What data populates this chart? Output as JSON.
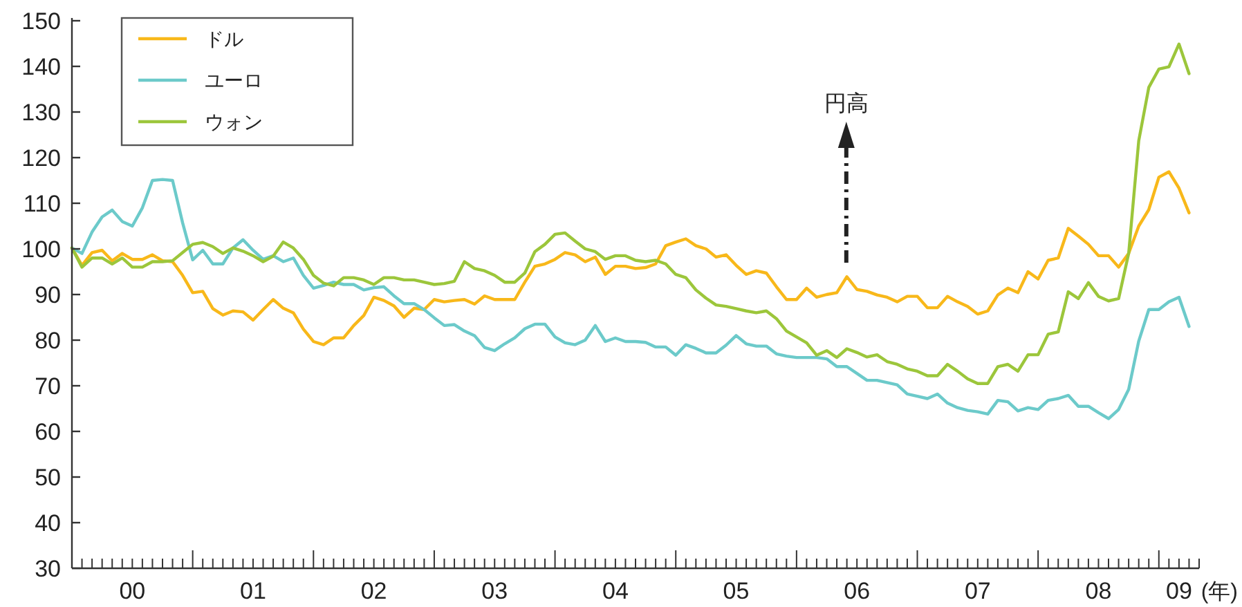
{
  "chart_data": {
    "type": "line",
    "x": [
      "2000-01",
      "2000-02",
      "2000-03",
      "2000-04",
      "2000-05",
      "2000-06",
      "2000-07",
      "2000-08",
      "2000-09",
      "2000-10",
      "2000-11",
      "2000-12",
      "2001-01",
      "2001-02",
      "2001-03",
      "2001-04",
      "2001-05",
      "2001-06",
      "2001-07",
      "2001-08",
      "2001-09",
      "2001-10",
      "2001-11",
      "2001-12",
      "2002-01",
      "2002-02",
      "2002-03",
      "2002-04",
      "2002-05",
      "2002-06",
      "2002-07",
      "2002-08",
      "2002-09",
      "2002-10",
      "2002-11",
      "2002-12",
      "2003-01",
      "2003-02",
      "2003-03",
      "2003-04",
      "2003-05",
      "2003-06",
      "2003-07",
      "2003-08",
      "2003-09",
      "2003-10",
      "2003-11",
      "2003-12",
      "2004-01",
      "2004-02",
      "2004-03",
      "2004-04",
      "2004-05",
      "2004-06",
      "2004-07",
      "2004-08",
      "2004-09",
      "2004-10",
      "2004-11",
      "2004-12",
      "2005-01",
      "2005-02",
      "2005-03",
      "2005-04",
      "2005-05",
      "2005-06",
      "2005-07",
      "2005-08",
      "2005-09",
      "2005-10",
      "2005-11",
      "2005-12",
      "2006-01",
      "2006-02",
      "2006-03",
      "2006-04",
      "2006-05",
      "2006-06",
      "2006-07",
      "2006-08",
      "2006-09",
      "2006-10",
      "2006-11",
      "2006-12",
      "2007-01",
      "2007-02",
      "2007-03",
      "2007-04",
      "2007-05",
      "2007-06",
      "2007-07",
      "2007-08",
      "2007-09",
      "2007-10",
      "2007-11",
      "2007-12",
      "2008-01",
      "2008-02",
      "2008-03",
      "2008-04",
      "2008-05",
      "2008-06",
      "2008-07",
      "2008-08",
      "2008-09",
      "2008-10",
      "2008-11",
      "2008-12",
      "2009-01",
      "2009-02",
      "2009-03",
      "2009-04"
    ],
    "series": [
      {
        "name": "ドル",
        "color": "#f8b81a",
        "values": [
          100.2,
          96.4,
          99.2,
          99.7,
          97.4,
          99,
          97.7,
          97.7,
          98.7,
          97.4,
          97.2,
          94.2,
          90.4,
          90.7,
          86.9,
          85.5,
          86.4,
          86.2,
          84.4,
          86.7,
          88.9,
          87,
          86,
          82.4,
          79.7,
          79,
          80.5,
          80.5,
          83.2,
          85.4,
          89.4,
          88.7,
          87.5,
          85,
          87,
          86.7,
          88.9,
          88.4,
          88.7,
          88.9,
          87.9,
          89.7,
          88.9,
          88.9,
          88.9,
          92.7,
          96.2,
          96.7,
          97.7,
          99.2,
          98.7,
          97.2,
          98.2,
          94.4,
          96.2,
          96.2,
          95.7,
          95.9,
          96.7,
          100.7,
          101.5,
          102.2,
          100.7,
          100,
          98.2,
          98.7,
          96.4,
          94.4,
          95.2,
          94.7,
          91.7,
          88.9,
          88.9,
          91.4,
          89.4,
          90,
          90.4,
          93.9,
          91.1,
          90.7,
          89.9,
          89.4,
          88.4,
          89.6,
          89.6,
          87.1,
          87.1,
          89.6,
          88.4,
          87.4,
          85.7,
          86.4,
          89.9,
          91.4,
          90.4,
          95,
          93.4,
          97.5,
          98,
          104.5,
          102.8,
          101,
          98.5,
          98.5,
          96,
          99,
          105,
          108.6,
          115.7,
          116.9,
          113.3,
          107.9
        ]
      },
      {
        "name": "ユーロ",
        "color": "#6ccaca",
        "values": [
          100.2,
          99,
          103.7,
          107,
          108.5,
          106,
          105,
          109,
          115,
          115.2,
          115,
          105.7,
          97.6,
          99.7,
          96.7,
          96.7,
          100.2,
          102,
          99.7,
          97.7,
          98.5,
          97.2,
          98,
          94.2,
          91.4,
          92,
          92.7,
          92.2,
          92.2,
          91,
          91.5,
          91.7,
          89.7,
          88,
          88,
          86.7,
          84.9,
          83.2,
          83.4,
          82,
          81,
          78.4,
          77.7,
          79.2,
          80.5,
          82.5,
          83.5,
          83.5,
          80.7,
          79.4,
          79,
          80,
          83.2,
          79.7,
          80.5,
          79.7,
          79.7,
          79.5,
          78.5,
          78.5,
          76.7,
          79,
          78.2,
          77.2,
          77.2,
          78.9,
          81,
          79.2,
          78.7,
          78.7,
          77,
          76.5,
          76.2,
          76.2,
          76.2,
          75.9,
          74.2,
          74.2,
          72.7,
          71.2,
          71.2,
          70.7,
          70.2,
          68.2,
          67.7,
          67.2,
          68.2,
          66.2,
          65.2,
          64.6,
          64.3,
          63.8,
          66.8,
          66.5,
          64.5,
          65.2,
          64.8,
          66.8,
          67.2,
          67.9,
          65.5,
          65.5,
          64.1,
          62.8,
          64.8,
          69.2,
          79.8,
          86.7,
          86.7,
          88.4,
          89.4,
          83
        ]
      },
      {
        "name": "ウォン",
        "color": "#9cc63b",
        "values": [
          100.2,
          96,
          98,
          98,
          96.7,
          98,
          96,
          96,
          97.2,
          97.2,
          97.4,
          99.2,
          101,
          101.4,
          100.5,
          99,
          100.2,
          99.5,
          98.5,
          97.2,
          98.4,
          101.5,
          100.2,
          97.7,
          94.2,
          92.5,
          91.9,
          93.7,
          93.7,
          93.2,
          92.2,
          93.7,
          93.7,
          93.2,
          93.2,
          92.7,
          92.2,
          92.4,
          92.9,
          97.2,
          95.7,
          95.2,
          94.2,
          92.7,
          92.7,
          94.7,
          99.4,
          101,
          103.2,
          103.5,
          101.7,
          100,
          99.4,
          97.7,
          98.5,
          98.5,
          97.5,
          97.2,
          97.5,
          96.7,
          94.4,
          93.7,
          91,
          89.2,
          87.7,
          87.4,
          86.9,
          86.4,
          86,
          86.4,
          84.7,
          82,
          80.7,
          79.4,
          76.7,
          77.7,
          76.2,
          78.1,
          77.3,
          76.3,
          76.8,
          75.3,
          74.7,
          73.7,
          73.2,
          72.2,
          72.2,
          74.7,
          73.2,
          71.5,
          70.5,
          70.5,
          74.2,
          74.7,
          73.2,
          76.8,
          76.8,
          81.3,
          81.8,
          90.6,
          89.1,
          92.6,
          89.6,
          88.6,
          89.1,
          99,
          123.7,
          135.4,
          139.4,
          139.9,
          144.9,
          138.4
        ]
      }
    ],
    "ylim": [
      30,
      150
    ],
    "yticks": [
      30,
      40,
      50,
      60,
      70,
      80,
      90,
      100,
      110,
      120,
      130,
      140,
      150
    ],
    "xlim": [
      "2000-01",
      "2009-05"
    ],
    "xticks": [
      {
        "value": "2000-02",
        "label": null
      },
      {
        "value": "2000-03",
        "label": null
      },
      {
        "value": "2000-04",
        "label": null
      },
      {
        "value": "2000-05",
        "label": null
      },
      {
        "value": "2000-06",
        "label": null
      },
      {
        "value": "2000-07",
        "label": "00"
      },
      {
        "value": "2000-08",
        "label": null
      },
      {
        "value": "2000-09",
        "label": null
      },
      {
        "value": "2000-10",
        "label": null
      },
      {
        "value": "2000-11",
        "label": null
      },
      {
        "value": "2000-12",
        "label": null
      },
      {
        "value": "2001-01",
        "label": null
      },
      {
        "value": "2001-02",
        "label": null
      },
      {
        "value": "2001-03",
        "label": null
      },
      {
        "value": "2001-04",
        "label": null
      },
      {
        "value": "2001-05",
        "label": null
      },
      {
        "value": "2001-06",
        "label": null
      },
      {
        "value": "2001-07",
        "label": "01"
      },
      {
        "value": "2001-08",
        "label": null
      },
      {
        "value": "2001-09",
        "label": null
      },
      {
        "value": "2001-10",
        "label": null
      },
      {
        "value": "2001-11",
        "label": null
      },
      {
        "value": "2001-12",
        "label": null
      },
      {
        "value": "2002-01",
        "label": null
      },
      {
        "value": "2002-02",
        "label": null
      },
      {
        "value": "2002-03",
        "label": null
      },
      {
        "value": "2002-04",
        "label": null
      },
      {
        "value": "2002-05",
        "label": null
      },
      {
        "value": "2002-06",
        "label": null
      },
      {
        "value": "2002-07",
        "label": "02"
      },
      {
        "value": "2002-08",
        "label": null
      },
      {
        "value": "2002-09",
        "label": null
      },
      {
        "value": "2002-10",
        "label": null
      },
      {
        "value": "2002-11",
        "label": null
      },
      {
        "value": "2002-12",
        "label": null
      },
      {
        "value": "2003-01",
        "label": null
      },
      {
        "value": "2003-02",
        "label": null
      },
      {
        "value": "2003-03",
        "label": null
      },
      {
        "value": "2003-04",
        "label": null
      },
      {
        "value": "2003-05",
        "label": null
      },
      {
        "value": "2003-06",
        "label": null
      },
      {
        "value": "2003-07",
        "label": "03"
      },
      {
        "value": "2003-08",
        "label": null
      },
      {
        "value": "2003-09",
        "label": null
      },
      {
        "value": "2003-10",
        "label": null
      },
      {
        "value": "2003-11",
        "label": null
      },
      {
        "value": "2003-12",
        "label": null
      },
      {
        "value": "2004-01",
        "label": null
      },
      {
        "value": "2004-02",
        "label": null
      },
      {
        "value": "2004-03",
        "label": null
      },
      {
        "value": "2004-04",
        "label": null
      },
      {
        "value": "2004-05",
        "label": null
      },
      {
        "value": "2004-06",
        "label": null
      },
      {
        "value": "2004-07",
        "label": "04"
      },
      {
        "value": "2004-08",
        "label": null
      },
      {
        "value": "2004-09",
        "label": null
      },
      {
        "value": "2004-10",
        "label": null
      },
      {
        "value": "2004-11",
        "label": null
      },
      {
        "value": "2004-12",
        "label": null
      },
      {
        "value": "2005-01",
        "label": null
      },
      {
        "value": "2005-02",
        "label": null
      },
      {
        "value": "2005-03",
        "label": null
      },
      {
        "value": "2005-04",
        "label": null
      },
      {
        "value": "2005-05",
        "label": null
      },
      {
        "value": "2005-06",
        "label": null
      },
      {
        "value": "2005-07",
        "label": "05"
      },
      {
        "value": "2005-08",
        "label": null
      },
      {
        "value": "2005-09",
        "label": null
      },
      {
        "value": "2005-10",
        "label": null
      },
      {
        "value": "2005-11",
        "label": null
      },
      {
        "value": "2005-12",
        "label": null
      },
      {
        "value": "2006-01",
        "label": null
      },
      {
        "value": "2006-02",
        "label": null
      },
      {
        "value": "2006-03",
        "label": null
      },
      {
        "value": "2006-04",
        "label": null
      },
      {
        "value": "2006-05",
        "label": null
      },
      {
        "value": "2006-06",
        "label": null
      },
      {
        "value": "2006-07",
        "label": "06"
      },
      {
        "value": "2006-08",
        "label": null
      },
      {
        "value": "2006-09",
        "label": null
      },
      {
        "value": "2006-10",
        "label": null
      },
      {
        "value": "2006-11",
        "label": null
      },
      {
        "value": "2006-12",
        "label": null
      },
      {
        "value": "2007-01",
        "label": null
      },
      {
        "value": "2007-02",
        "label": null
      },
      {
        "value": "2007-03",
        "label": null
      },
      {
        "value": "2007-04",
        "label": null
      },
      {
        "value": "2007-05",
        "label": null
      },
      {
        "value": "2007-06",
        "label": null
      },
      {
        "value": "2007-07",
        "label": "07"
      },
      {
        "value": "2007-08",
        "label": null
      },
      {
        "value": "2007-09",
        "label": null
      },
      {
        "value": "2007-10",
        "label": null
      },
      {
        "value": "2007-11",
        "label": null
      },
      {
        "value": "2007-12",
        "label": null
      },
      {
        "value": "2008-01",
        "label": null
      },
      {
        "value": "2008-02",
        "label": null
      },
      {
        "value": "2008-03",
        "label": null
      },
      {
        "value": "2008-04",
        "label": null
      },
      {
        "value": "2008-05",
        "label": null
      },
      {
        "value": "2008-06",
        "label": null
      },
      {
        "value": "2008-07",
        "label": "08"
      },
      {
        "value": "2008-08",
        "label": null
      },
      {
        "value": "2008-09",
        "label": null
      },
      {
        "value": "2008-10",
        "label": null
      },
      {
        "value": "2008-11",
        "label": null
      },
      {
        "value": "2008-12",
        "label": null
      },
      {
        "value": "2009-01",
        "label": null
      },
      {
        "value": "2009-02",
        "label": null
      },
      {
        "value": "2009-03",
        "label": "09"
      },
      {
        "value": "2009-04",
        "label": null
      }
    ],
    "xlabel": "(年)",
    "annotations": [
      "円高"
    ],
    "legend": "top left",
    "grid": false,
    "marker": "none",
    "line_style": "solid"
  }
}
